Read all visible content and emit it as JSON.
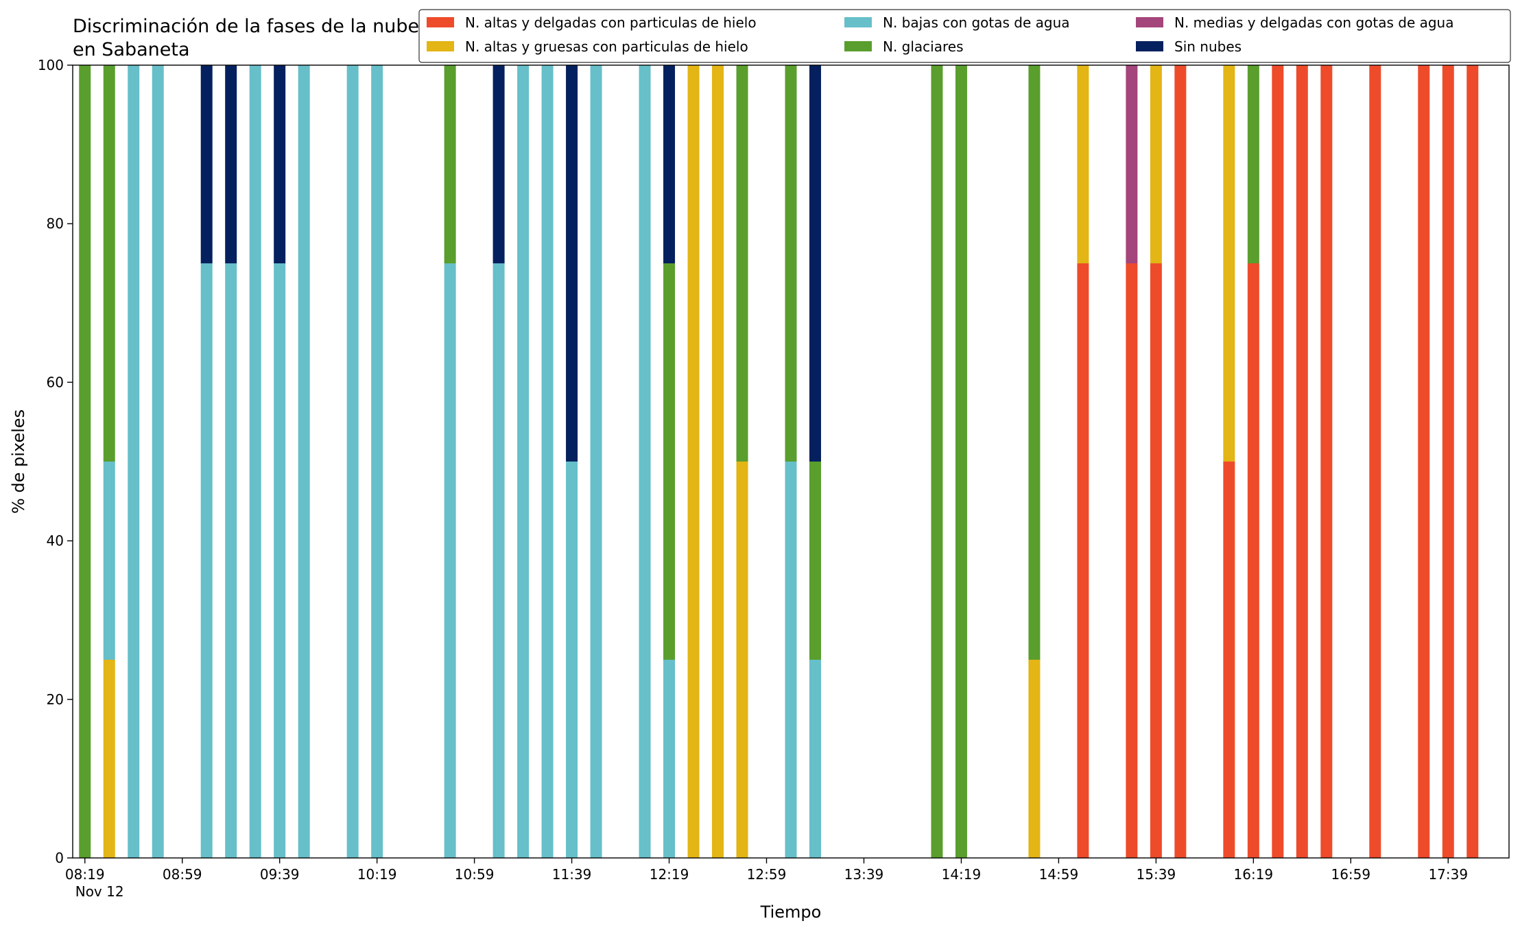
{
  "chart_data": {
    "type": "stacked_bar",
    "title": "Discriminación de la fases de la nube en Sabaneta",
    "xlabel": "Tiempo",
    "ylabel": "% de pixeles",
    "x_date_label": "Nov 12",
    "x": [
      "08:19",
      "08:29",
      "08:39",
      "08:49",
      "09:09",
      "09:19",
      "09:29",
      "09:39",
      "09:49",
      "10:09",
      "10:19",
      "10:49",
      "11:09",
      "11:19",
      "11:29",
      "11:39",
      "11:49",
      "12:09",
      "12:19",
      "12:29",
      "12:39",
      "12:49",
      "13:09",
      "13:19",
      "14:09",
      "14:19",
      "14:49",
      "15:09",
      "15:29",
      "15:39",
      "15:49",
      "16:09",
      "16:19",
      "16:29",
      "16:39",
      "16:49",
      "17:09",
      "17:29",
      "17:39",
      "17:49"
    ],
    "xlim": [
      "08:14",
      "18:04"
    ],
    "xticks": [
      "08:19",
      "08:59",
      "09:39",
      "10:19",
      "10:59",
      "11:39",
      "12:19",
      "12:59",
      "13:39",
      "14:19",
      "14:59",
      "15:39",
      "16:19",
      "16:59",
      "17:39"
    ],
    "ylim": [
      0,
      100
    ],
    "yticks": [
      0,
      20,
      40,
      60,
      80,
      100
    ],
    "legend": "top-right",
    "series": [
      {
        "name": "N. altas y delgadas con particulas de hielo",
        "color": "#ee4b2b",
        "values": [
          0,
          0,
          0,
          0,
          0,
          0,
          0,
          0,
          0,
          0,
          0,
          0,
          0,
          0,
          0,
          0,
          0,
          0,
          0,
          0,
          0,
          0,
          0,
          0,
          0,
          0,
          0,
          75,
          75,
          75,
          100,
          50,
          75,
          100,
          100,
          100,
          100,
          100,
          100,
          100
        ]
      },
      {
        "name": "N. altas y gruesas con particulas de hielo",
        "color": "#e3b515",
        "values": [
          0,
          25,
          0,
          0,
          0,
          0,
          0,
          0,
          0,
          0,
          0,
          0,
          0,
          0,
          0,
          0,
          0,
          0,
          0,
          100,
          100,
          50,
          0,
          0,
          0,
          0,
          25,
          25,
          0,
          25,
          0,
          50,
          0,
          0,
          0,
          0,
          0,
          0,
          0,
          0
        ]
      },
      {
        "name": "N. bajas con gotas de agua",
        "color": "#66bfc9",
        "values": [
          0,
          25,
          100,
          100,
          75,
          75,
          100,
          75,
          100,
          100,
          100,
          75,
          75,
          100,
          100,
          50,
          100,
          100,
          25,
          0,
          0,
          0,
          50,
          25,
          0,
          0,
          0,
          0,
          0,
          0,
          0,
          0,
          0,
          0,
          0,
          0,
          0,
          0,
          0,
          0
        ]
      },
      {
        "name": "N. glaciares",
        "color": "#5a9e2d",
        "values": [
          100,
          50,
          0,
          0,
          0,
          0,
          0,
          0,
          0,
          0,
          0,
          25,
          0,
          0,
          0,
          0,
          0,
          0,
          50,
          0,
          0,
          50,
          50,
          25,
          100,
          100,
          75,
          0,
          0,
          0,
          0,
          0,
          25,
          0,
          0,
          0,
          0,
          0,
          0,
          0
        ]
      },
      {
        "name": "N. medias y delgadas con gotas de agua",
        "color": "#a4457b",
        "values": [
          0,
          0,
          0,
          0,
          0,
          0,
          0,
          0,
          0,
          0,
          0,
          0,
          0,
          0,
          0,
          0,
          0,
          0,
          0,
          0,
          0,
          0,
          0,
          0,
          0,
          0,
          0,
          0,
          25,
          0,
          0,
          0,
          0,
          0,
          0,
          0,
          0,
          0,
          0,
          0
        ]
      },
      {
        "name": "Sin nubes",
        "color": "#05205e",
        "values": [
          0,
          0,
          0,
          0,
          25,
          25,
          0,
          25,
          0,
          0,
          0,
          0,
          25,
          0,
          0,
          50,
          0,
          0,
          25,
          0,
          0,
          0,
          0,
          50,
          0,
          0,
          0,
          0,
          0,
          0,
          0,
          0,
          0,
          0,
          0,
          0,
          0,
          0,
          0,
          0
        ]
      }
    ]
  }
}
